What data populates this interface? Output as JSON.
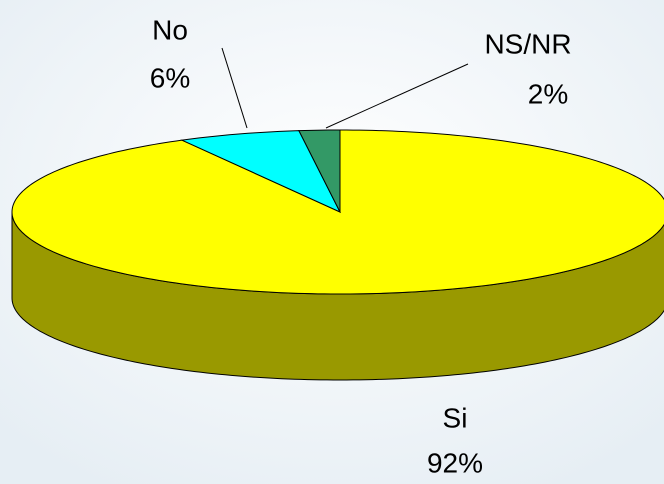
{
  "chart_data": {
    "type": "pie",
    "categories": [
      "Si",
      "No",
      "NS/NR"
    ],
    "values": [
      92,
      6,
      2
    ],
    "value_labels": [
      "92%",
      "6%",
      "2%"
    ],
    "colors": [
      "#ffff00",
      "#00ffff",
      "#339966"
    ]
  }
}
